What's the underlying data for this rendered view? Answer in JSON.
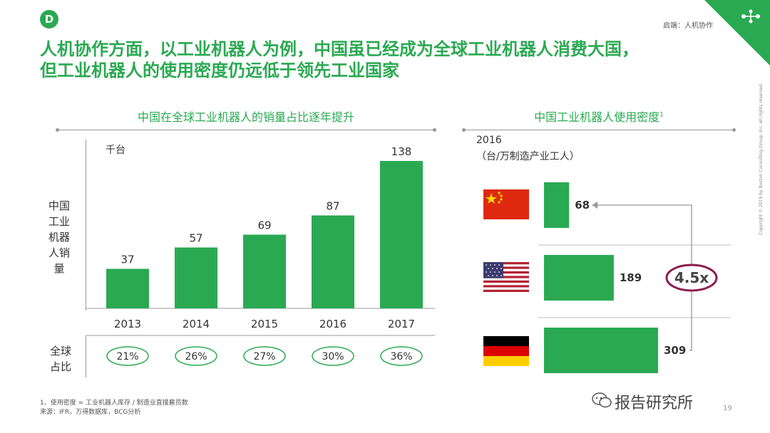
{
  "header": {
    "badge": "D",
    "section": "启端：人机协作",
    "title_line1": "人机协作方面，以工业机器人为例，中国虽已经成为全球工业机器人消费大国，",
    "title_line2": "但工业机器人的使用密度仍远低于领先工业国家"
  },
  "left_panel": {
    "title": "中国在全球工业机器人的销量占比逐年提升",
    "unit": "千台",
    "ylabel": "中国工业机器人销量",
    "share_label": "全球占比"
  },
  "right_panel": {
    "title": "中国工业机器人使用密度",
    "title_sup": "1",
    "year": "2016",
    "unit": "（台/万制造产业工人）",
    "ratio": "4.5x"
  },
  "chart_data": [
    {
      "type": "bar",
      "title": "中国在全球工业机器人的销量占比逐年提升",
      "ylabel": "中国工业机器人销量",
      "unit": "千台",
      "categories": [
        "2013",
        "2014",
        "2015",
        "2016",
        "2017"
      ],
      "values": [
        37,
        57,
        69,
        87,
        138
      ],
      "value_labels": [
        "37",
        "57",
        "69",
        "87",
        "138"
      ],
      "global_share": [
        "21%",
        "26%",
        "27%",
        "30%",
        "36%"
      ],
      "ylim": [
        0,
        138
      ],
      "color": "#2aa952"
    },
    {
      "type": "bar",
      "orientation": "horizontal",
      "title": "中国工业机器人使用密度",
      "subtitle": "2016",
      "unit": "（台/万制造产业工人）",
      "categories": [
        "China",
        "USA",
        "Germany"
      ],
      "values": [
        68,
        189,
        309
      ],
      "value_labels": [
        "68",
        "189",
        "309"
      ],
      "xlim": [
        0,
        309
      ],
      "annotation": "4.5x",
      "color": "#2aa952"
    }
  ],
  "footer": {
    "note1": "1、使用密度 = 工业机器人库存 / 制造业直接雇员数",
    "note2": "来源：IFR，万得数据库，BCG分析",
    "page": "19",
    "copyright": "Copyright © 2019 by Boston Consulting Group, Inc. All rights reserved.",
    "watermark": "报告研究所"
  },
  "colors": {
    "accent": "#2aa952",
    "ring": "#8c1d4f",
    "arrow": "#999999"
  }
}
